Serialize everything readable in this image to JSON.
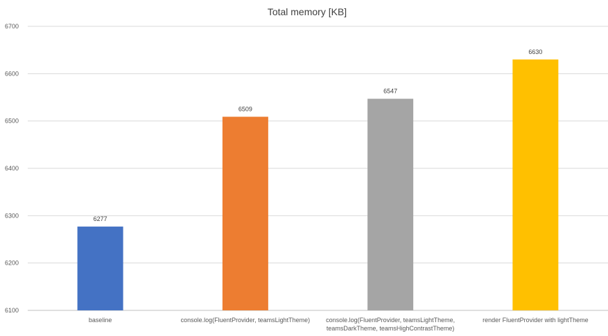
{
  "chart_data": {
    "type": "bar",
    "title": "Total memory [KB]",
    "xlabel": "",
    "ylabel": "",
    "ylim": [
      6100,
      6700
    ],
    "yticks": [
      6100,
      6200,
      6300,
      6400,
      6500,
      6600,
      6700
    ],
    "grid": true,
    "legend": "none",
    "categories": [
      [
        "baseline"
      ],
      [
        "console.log(FluentProvider, teamsLightTheme)"
      ],
      [
        "console.log(FluentProvider, teamsLightTheme,",
        "teamsDarkTheme, teamsHighContrastTheme)"
      ],
      [
        "render FluentProvider with lightTheme"
      ]
    ],
    "values": [
      6277,
      6509,
      6547,
      6630
    ],
    "colors": [
      "#4472c4",
      "#ed7d31",
      "#a5a5a5",
      "#ffc000"
    ]
  }
}
